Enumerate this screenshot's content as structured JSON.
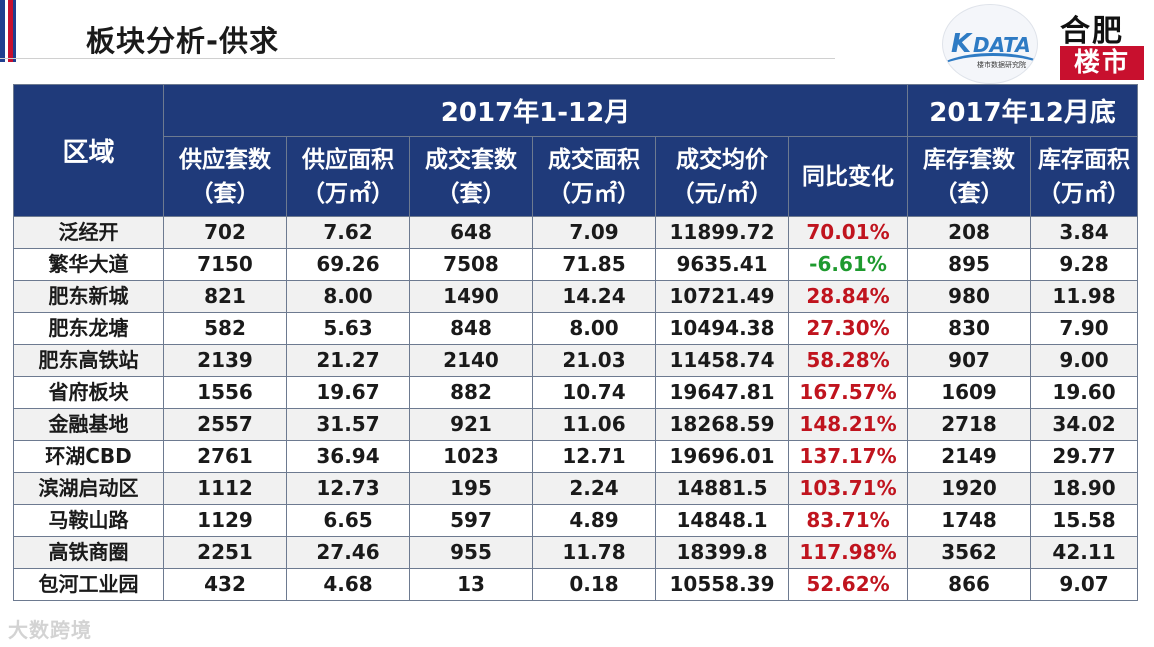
{
  "slide": {
    "title": "板块分析-供求"
  },
  "logos": {
    "kdata": {
      "mark": "K",
      "name": "DATA",
      "sub": "楼市数据研究院"
    },
    "hefei": {
      "top": "合肥",
      "bottom": "楼市"
    }
  },
  "colors": {
    "header_bg": "#1f3a7a",
    "positive": "#c0141e",
    "negative": "#1e9a2e",
    "accent_red": "#c8102e"
  },
  "table": {
    "period_header": {
      "region": "区域",
      "period1": "2017年1-12月",
      "period2": "2017年12月底"
    },
    "columns": [
      {
        "line1": "供应套数",
        "line2": "（套）"
      },
      {
        "line1": "供应面积",
        "line2": "（万㎡）"
      },
      {
        "line1": "成交套数",
        "line2": "（套）"
      },
      {
        "line1": "成交面积",
        "line2": "（万㎡）"
      },
      {
        "line1": "成交均价",
        "line2": "（元/㎡）"
      },
      {
        "line1": "同比变化",
        "line2": ""
      },
      {
        "line1": "库存套数",
        "line2": "（套）"
      },
      {
        "line1": "库存面积",
        "line2": "（万㎡）"
      }
    ],
    "rows": [
      {
        "region": "泛经开",
        "supply_units": "702",
        "supply_area": "7.62",
        "deal_units": "648",
        "deal_area": "7.09",
        "avg_price": "11899.72",
        "yoy": "70.01%",
        "stock_units": "208",
        "stock_area": "3.84"
      },
      {
        "region": "繁华大道",
        "supply_units": "7150",
        "supply_area": "69.26",
        "deal_units": "7508",
        "deal_area": "71.85",
        "avg_price": "9635.41",
        "yoy": "-6.61%",
        "stock_units": "895",
        "stock_area": "9.28"
      },
      {
        "region": "肥东新城",
        "supply_units": "821",
        "supply_area": "8.00",
        "deal_units": "1490",
        "deal_area": "14.24",
        "avg_price": "10721.49",
        "yoy": "28.84%",
        "stock_units": "980",
        "stock_area": "11.98"
      },
      {
        "region": "肥东龙塘",
        "supply_units": "582",
        "supply_area": "5.63",
        "deal_units": "848",
        "deal_area": "8.00",
        "avg_price": "10494.38",
        "yoy": "27.30%",
        "stock_units": "830",
        "stock_area": "7.90"
      },
      {
        "region": "肥东高铁站",
        "supply_units": "2139",
        "supply_area": "21.27",
        "deal_units": "2140",
        "deal_area": "21.03",
        "avg_price": "11458.74",
        "yoy": "58.28%",
        "stock_units": "907",
        "stock_area": "9.00"
      },
      {
        "region": "省府板块",
        "supply_units": "1556",
        "supply_area": "19.67",
        "deal_units": "882",
        "deal_area": "10.74",
        "avg_price": "19647.81",
        "yoy": "167.57%",
        "stock_units": "1609",
        "stock_area": "19.60"
      },
      {
        "region": "金融基地",
        "supply_units": "2557",
        "supply_area": "31.57",
        "deal_units": "921",
        "deal_area": "11.06",
        "avg_price": "18268.59",
        "yoy": "148.21%",
        "stock_units": "2718",
        "stock_area": "34.02"
      },
      {
        "region": "环湖CBD",
        "supply_units": "2761",
        "supply_area": "36.94",
        "deal_units": "1023",
        "deal_area": "12.71",
        "avg_price": "19696.01",
        "yoy": "137.17%",
        "stock_units": "2149",
        "stock_area": "29.77"
      },
      {
        "region": "滨湖启动区",
        "supply_units": "1112",
        "supply_area": "12.73",
        "deal_units": "195",
        "deal_area": "2.24",
        "avg_price": "14881.5",
        "yoy": "103.71%",
        "stock_units": "1920",
        "stock_area": "18.90"
      },
      {
        "region": "马鞍山路",
        "supply_units": "1129",
        "supply_area": "6.65",
        "deal_units": "597",
        "deal_area": "4.89",
        "avg_price": "14848.1",
        "yoy": "83.71%",
        "stock_units": "1748",
        "stock_area": "15.58"
      },
      {
        "region": "高铁商圈",
        "supply_units": "2251",
        "supply_area": "27.46",
        "deal_units": "955",
        "deal_area": "11.78",
        "avg_price": "18399.8",
        "yoy": "117.98%",
        "stock_units": "3562",
        "stock_area": "42.11"
      },
      {
        "region": "包河工业园",
        "supply_units": "432",
        "supply_area": "4.68",
        "deal_units": "13",
        "deal_area": "0.18",
        "avg_price": "10558.39",
        "yoy": "52.62%",
        "stock_units": "866",
        "stock_area": "9.07"
      }
    ]
  },
  "watermark": "大数跨境"
}
